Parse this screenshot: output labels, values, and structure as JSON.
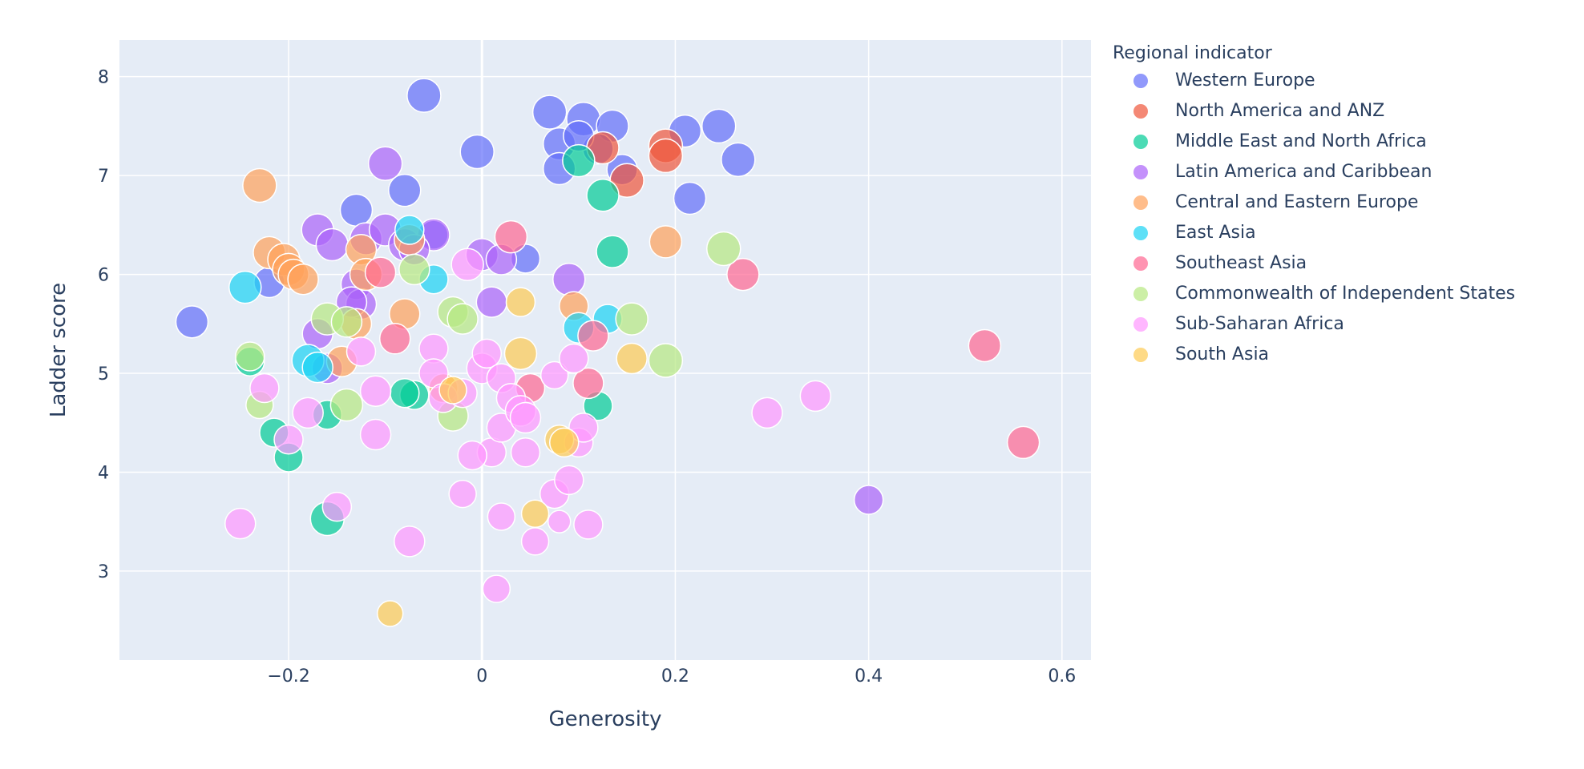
{
  "chart_data": {
    "type": "scatter",
    "xlabel": "Generosity",
    "ylabel": "Ladder score",
    "xlim": [
      -0.375,
      0.63
    ],
    "ylim": [
      2.1,
      8.37
    ],
    "x_ticks": [
      -0.2,
      0,
      0.2,
      0.4,
      0.6
    ],
    "x_tick_labels": [
      "−0.2",
      "0",
      "0.2",
      "0.4",
      "0.6"
    ],
    "y_ticks": [
      3,
      4,
      5,
      6,
      7,
      8
    ],
    "y_tick_labels": [
      "3",
      "4",
      "5",
      "6",
      "7",
      "8"
    ],
    "grid": true,
    "plot_bg": "#e5ecf6",
    "legend_title": "Regional indicator",
    "legend_position": "right",
    "series": [
      {
        "name": "Western Europe",
        "color": "#636efa",
        "points": [
          [
            -0.06,
            7.81,
            21
          ],
          [
            0.07,
            7.64,
            21
          ],
          [
            0.105,
            7.57,
            21
          ],
          [
            0.135,
            7.5,
            20
          ],
          [
            0.08,
            7.32,
            20
          ],
          [
            0.12,
            7.27,
            19
          ],
          [
            0.21,
            7.45,
            20
          ],
          [
            0.245,
            7.5,
            21
          ],
          [
            0.265,
            7.16,
            21
          ],
          [
            0.215,
            6.77,
            20
          ],
          [
            0.08,
            7.07,
            20
          ],
          [
            0.145,
            7.06,
            19
          ],
          [
            -0.005,
            7.24,
            21
          ],
          [
            -0.08,
            6.85,
            20
          ],
          [
            -0.13,
            6.65,
            20
          ],
          [
            -0.3,
            5.52,
            20
          ],
          [
            -0.22,
            5.92,
            19
          ],
          [
            0.045,
            6.16,
            18
          ],
          [
            0.1,
            7.4,
            19
          ],
          [
            -0.05,
            6.4,
            18
          ]
        ]
      },
      {
        "name": "North America and ANZ",
        "color": "#ef553b",
        "points": [
          [
            0.19,
            7.3,
            21
          ],
          [
            0.19,
            7.2,
            21
          ],
          [
            0.125,
            7.28,
            20
          ],
          [
            0.15,
            6.95,
            21
          ]
        ]
      },
      {
        "name": "Middle East and North Africa",
        "color": "#00cc96",
        "points": [
          [
            0.1,
            7.15,
            20
          ],
          [
            0.125,
            6.8,
            20
          ],
          [
            0.135,
            6.23,
            20
          ],
          [
            0.12,
            4.67,
            18
          ],
          [
            -0.07,
            4.78,
            18
          ],
          [
            -0.08,
            4.8,
            18
          ],
          [
            -0.16,
            4.58,
            18
          ],
          [
            -0.215,
            4.4,
            18
          ],
          [
            -0.2,
            4.15,
            18
          ],
          [
            -0.16,
            3.53,
            21
          ],
          [
            -0.24,
            5.12,
            18
          ]
        ]
      },
      {
        "name": "Latin America and Caribbean",
        "color": "#ab63fa",
        "points": [
          [
            -0.1,
            7.12,
            21
          ],
          [
            -0.17,
            6.45,
            20
          ],
          [
            -0.155,
            6.3,
            20
          ],
          [
            -0.12,
            6.36,
            20
          ],
          [
            -0.1,
            6.45,
            20
          ],
          [
            -0.08,
            6.3,
            20
          ],
          [
            -0.05,
            6.4,
            20
          ],
          [
            0,
            6.2,
            20
          ],
          [
            0.02,
            6.15,
            19
          ],
          [
            0.09,
            5.95,
            20
          ],
          [
            -0.13,
            5.9,
            19
          ],
          [
            -0.125,
            5.7,
            19
          ],
          [
            0.01,
            5.72,
            19
          ],
          [
            -0.07,
            6.25,
            19
          ],
          [
            -0.16,
            5.05,
            19
          ],
          [
            -0.17,
            5.4,
            19
          ],
          [
            -0.135,
            5.72,
            19
          ],
          [
            0.4,
            3.72,
            18
          ]
        ]
      },
      {
        "name": "Central and Eastern Europe",
        "color": "#ffa15a",
        "points": [
          [
            -0.23,
            6.9,
            21
          ],
          [
            -0.22,
            6.22,
            20
          ],
          [
            -0.205,
            6.15,
            20
          ],
          [
            -0.2,
            6.05,
            20
          ],
          [
            -0.195,
            6.0,
            19
          ],
          [
            -0.185,
            5.95,
            19
          ],
          [
            -0.125,
            6.25,
            19
          ],
          [
            -0.12,
            6.0,
            20
          ],
          [
            -0.08,
            5.6,
            19
          ],
          [
            -0.075,
            6.35,
            19
          ],
          [
            -0.13,
            5.5,
            19
          ],
          [
            -0.145,
            5.12,
            19
          ],
          [
            0.19,
            6.33,
            20
          ],
          [
            0.095,
            5.68,
            18
          ],
          [
            -0.04,
            4.85,
            18
          ]
        ]
      },
      {
        "name": "East Asia",
        "color": "#19d3f3",
        "points": [
          [
            -0.245,
            5.87,
            20
          ],
          [
            -0.075,
            6.45,
            18
          ],
          [
            -0.05,
            5.95,
            18
          ],
          [
            0.1,
            5.46,
            19
          ],
          [
            0.13,
            5.55,
            18
          ],
          [
            -0.18,
            5.13,
            20
          ],
          [
            -0.17,
            5.06,
            19
          ]
        ]
      },
      {
        "name": "Southeast Asia",
        "color": "#ff6692",
        "points": [
          [
            0.03,
            6.38,
            20
          ],
          [
            0.27,
            6.0,
            20
          ],
          [
            0.115,
            5.38,
            19
          ],
          [
            0.11,
            4.9,
            19
          ],
          [
            0.52,
            5.28,
            20
          ],
          [
            0.56,
            4.3,
            20
          ],
          [
            -0.09,
            5.35,
            19
          ],
          [
            0.05,
            4.85,
            18
          ],
          [
            -0.105,
            6.02,
            19
          ]
        ]
      },
      {
        "name": "Commonwealth of Independent States",
        "color": "#b6e880",
        "points": [
          [
            0.25,
            6.26,
            21
          ],
          [
            0.155,
            5.55,
            20
          ],
          [
            0.19,
            5.13,
            21
          ],
          [
            -0.16,
            5.55,
            20
          ],
          [
            -0.14,
            5.52,
            19
          ],
          [
            -0.03,
            5.62,
            19
          ],
          [
            -0.02,
            5.55,
            19
          ],
          [
            -0.07,
            6.05,
            19
          ],
          [
            -0.24,
            5.17,
            18
          ],
          [
            -0.23,
            4.68,
            17
          ],
          [
            -0.14,
            4.68,
            20
          ],
          [
            -0.03,
            4.57,
            19
          ]
        ]
      },
      {
        "name": "Sub-Saharan Africa",
        "color": "#ff97ff",
        "points": [
          [
            -0.225,
            4.85,
            18
          ],
          [
            -0.2,
            4.33,
            18
          ],
          [
            -0.18,
            4.6,
            19
          ],
          [
            -0.125,
            5.22,
            18
          ],
          [
            -0.11,
            4.82,
            19
          ],
          [
            -0.11,
            4.38,
            19
          ],
          [
            -0.15,
            3.65,
            18
          ],
          [
            -0.25,
            3.48,
            19
          ],
          [
            -0.075,
            3.3,
            19
          ],
          [
            -0.05,
            5.25,
            18
          ],
          [
            -0.05,
            5.0,
            18
          ],
          [
            -0.04,
            4.75,
            18
          ],
          [
            -0.02,
            4.8,
            18
          ],
          [
            -0.015,
            6.1,
            20
          ],
          [
            0,
            5.05,
            19
          ],
          [
            0.005,
            5.2,
            18
          ],
          [
            0.01,
            4.2,
            18
          ],
          [
            -0.01,
            4.17,
            18
          ],
          [
            -0.02,
            3.78,
            17
          ],
          [
            0.02,
            4.95,
            18
          ],
          [
            0.02,
            4.45,
            18
          ],
          [
            0.03,
            4.75,
            18
          ],
          [
            0.04,
            4.62,
            19
          ],
          [
            0.045,
            4.55,
            19
          ],
          [
            0.045,
            4.2,
            18
          ],
          [
            0.02,
            3.55,
            17
          ],
          [
            0.055,
            3.3,
            17
          ],
          [
            0.015,
            2.82,
            17
          ],
          [
            0.075,
            3.78,
            18
          ],
          [
            0.08,
            3.5,
            14
          ],
          [
            0.09,
            3.92,
            18
          ],
          [
            0.075,
            4.98,
            17
          ],
          [
            0.095,
            5.15,
            18
          ],
          [
            0.1,
            4.3,
            18
          ],
          [
            0.105,
            4.45,
            18
          ],
          [
            0.11,
            3.47,
            18
          ],
          [
            0.295,
            4.6,
            19
          ],
          [
            0.345,
            4.77,
            19
          ]
        ]
      },
      {
        "name": "South Asia",
        "color": "#fecb52",
        "points": [
          [
            0.04,
            5.72,
            18
          ],
          [
            0.04,
            5.2,
            20
          ],
          [
            0.155,
            5.15,
            19
          ],
          [
            0.08,
            4.33,
            18
          ],
          [
            0.085,
            4.3,
            18
          ],
          [
            0.055,
            3.58,
            17
          ],
          [
            -0.095,
            2.57,
            16
          ],
          [
            -0.03,
            4.83,
            17
          ]
        ]
      }
    ]
  }
}
